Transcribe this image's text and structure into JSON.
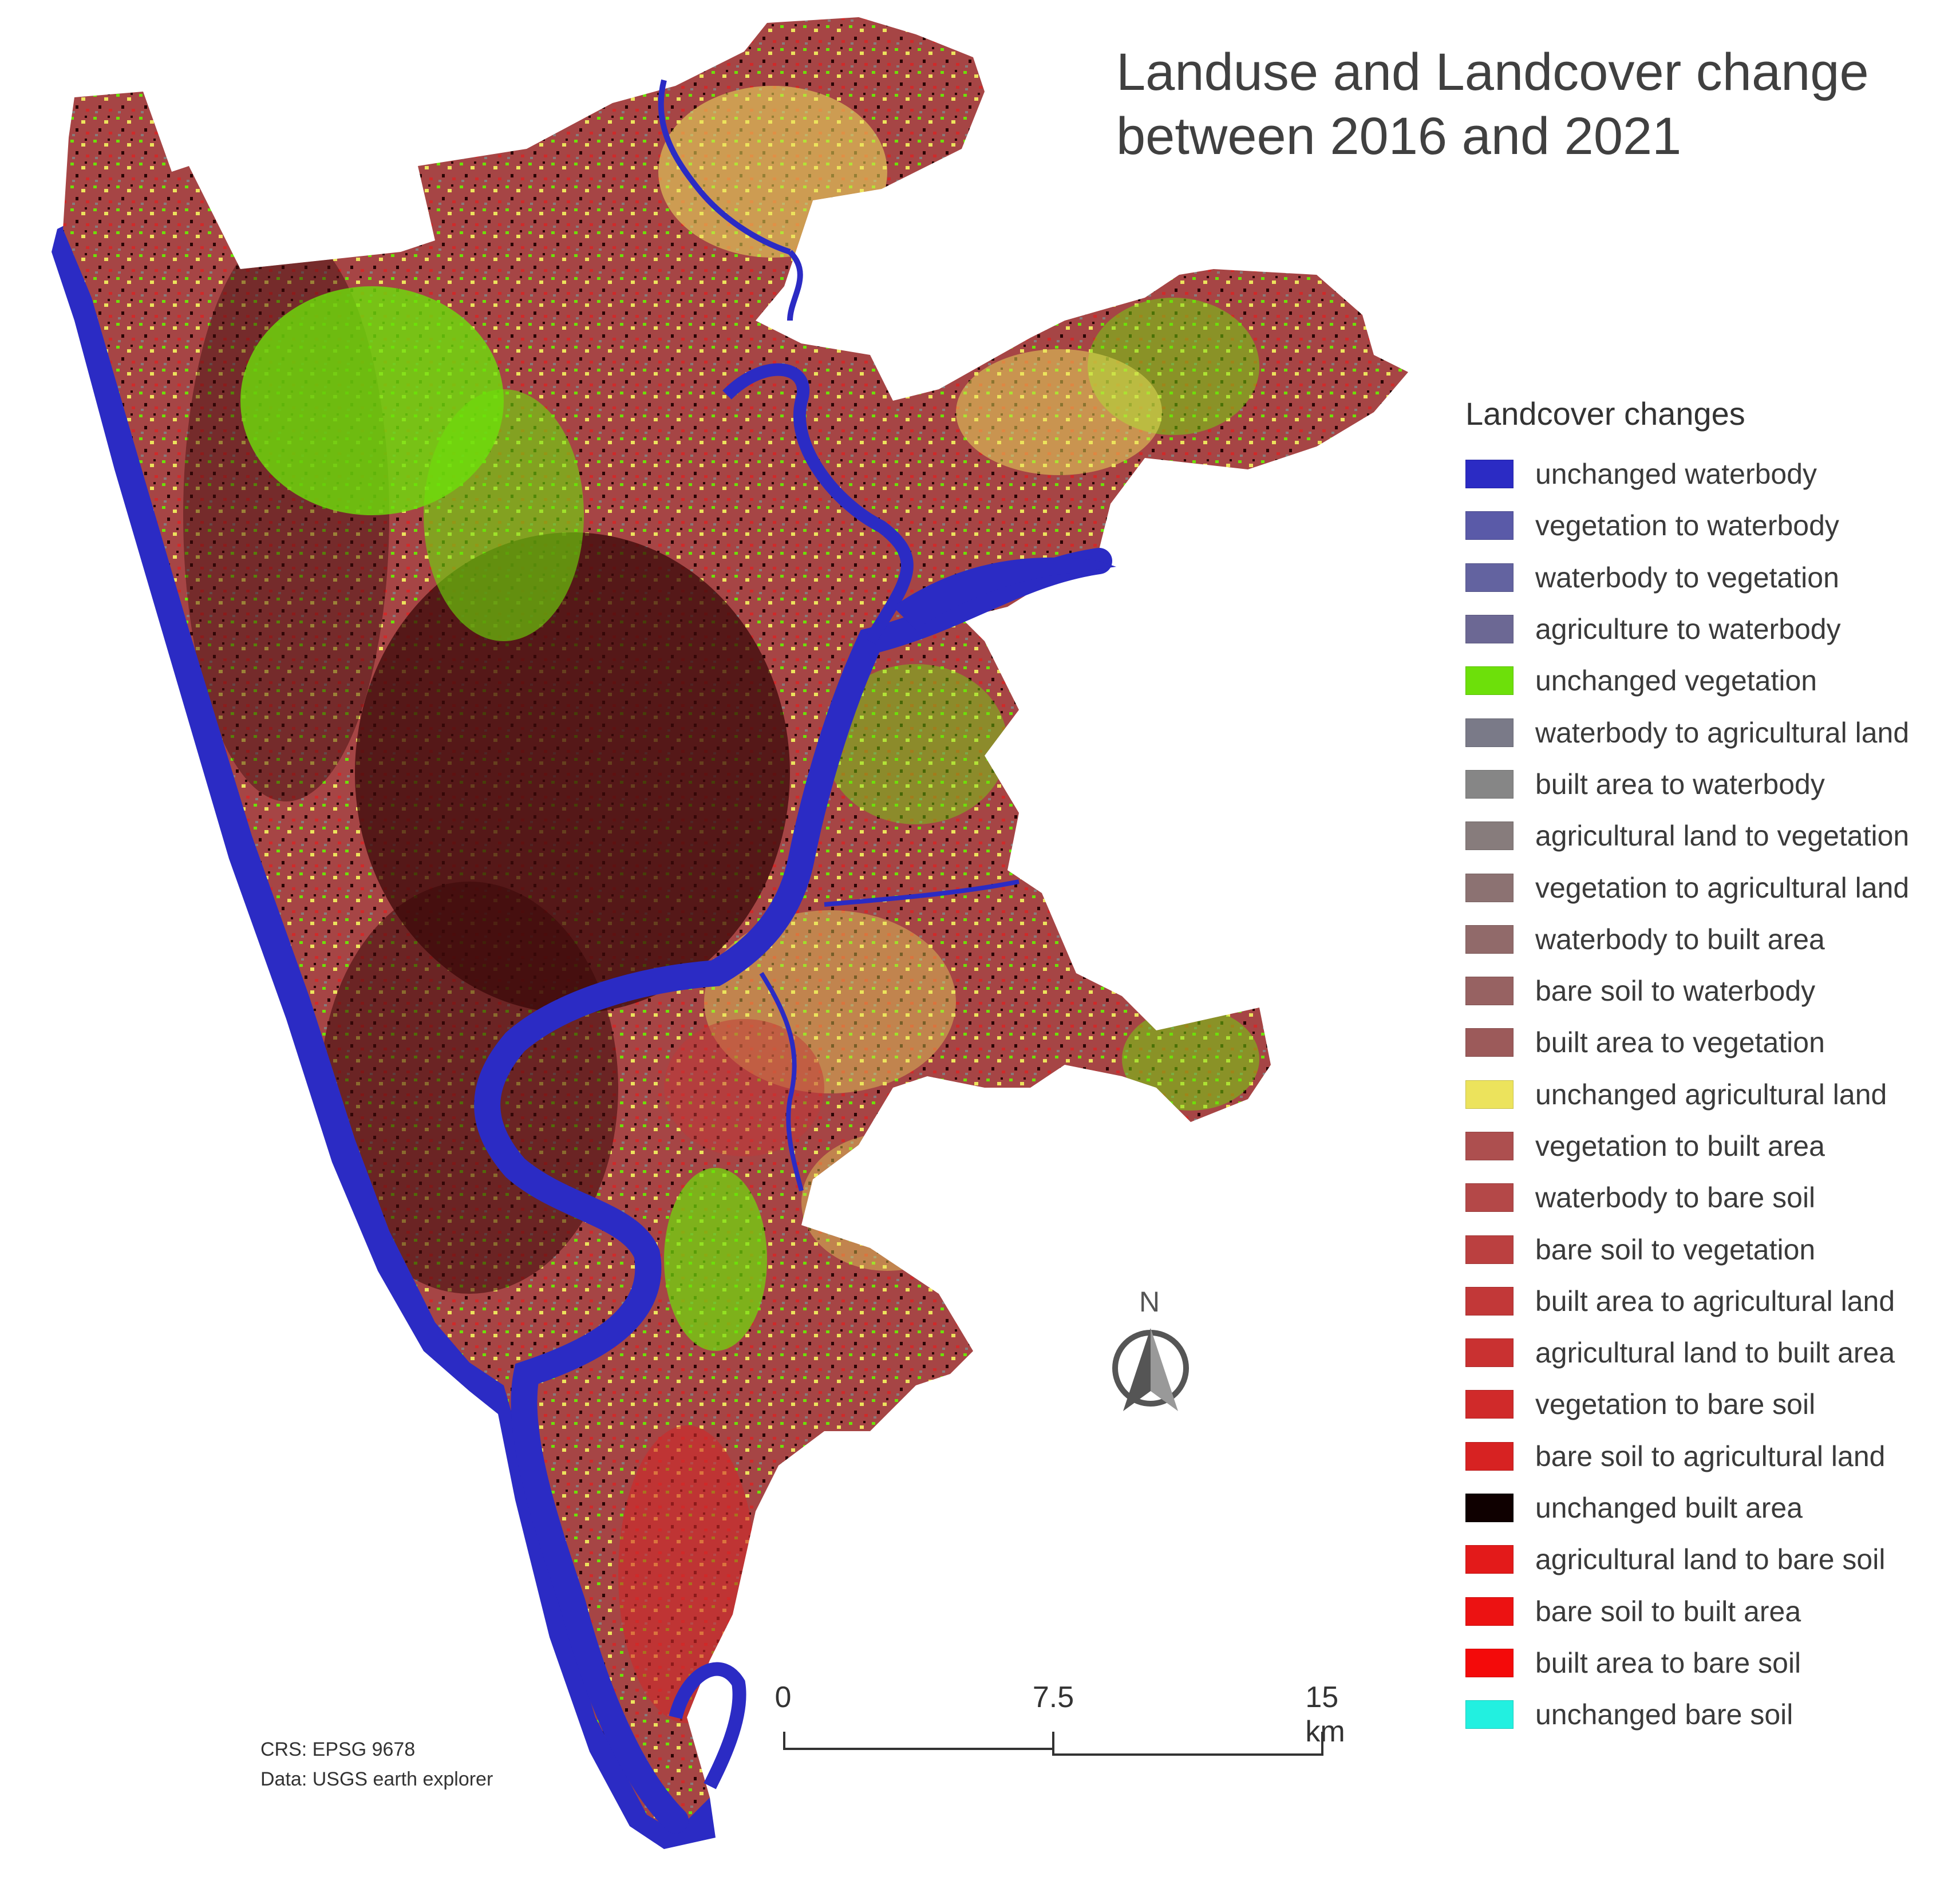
{
  "title": {
    "line1": "Landuse and Landcover change",
    "line2": "between 2016 and 2021"
  },
  "legend": {
    "title": "Landcover changes",
    "items": [
      {
        "label": "unchanged waterbody",
        "color": "#2b2bc4"
      },
      {
        "label": "vegetation to waterbody",
        "color": "#5a5aa8"
      },
      {
        "label": "waterbody to vegetation",
        "color": "#6363a0"
      },
      {
        "label": "agriculture to waterbody",
        "color": "#6c6894"
      },
      {
        "label": "unchanged vegetation",
        "color": "#6de00a"
      },
      {
        "label": "waterbody to agricultural land",
        "color": "#7a7a88"
      },
      {
        "label": "built area to waterbody",
        "color": "#868686"
      },
      {
        "label": "agricultural land to vegetation",
        "color": "#877c7c"
      },
      {
        "label": "vegetation to agricultural land",
        "color": "#8c7272"
      },
      {
        "label": "waterbody to built area",
        "color": "#916a6a"
      },
      {
        "label": "bare soil to waterbody",
        "color": "#976262"
      },
      {
        "label": "built area to vegetation",
        "color": "#9c5a5a"
      },
      {
        "label": "unchanged agricultural land",
        "color": "#ece35c"
      },
      {
        "label": "vegetation to built area",
        "color": "#ad4f4f"
      },
      {
        "label": "waterbody to bare soil",
        "color": "#b44848"
      },
      {
        "label": "bare soil to vegetation",
        "color": "#bb4040"
      },
      {
        "label": "built area to agricultural land",
        "color": "#c23838"
      },
      {
        "label": "agricultural land to built area",
        "color": "#c93131"
      },
      {
        "label": "vegetation to bare soil",
        "color": "#d02a2a"
      },
      {
        "label": "bare soil to agricultural land",
        "color": "#d72222"
      },
      {
        "label": "unchanged built area",
        "color": "#0f0000"
      },
      {
        "label": "agricultural land to bare soil",
        "color": "#e31a1a"
      },
      {
        "label": "bare soil to built area",
        "color": "#ec1212"
      },
      {
        "label": "built area to bare soil",
        "color": "#f40a0a"
      },
      {
        "label": "unchanged bare soil",
        "color": "#22f0e0"
      }
    ]
  },
  "scalebar": {
    "labels": [
      "0",
      "7.5",
      "15 km"
    ]
  },
  "north_arrow": {
    "letter": "N",
    "icon": "north-arrow-icon"
  },
  "credits": {
    "crs": "CRS: EPSG 9678",
    "data": "Data: USGS earth explorer"
  },
  "map": {
    "land_color": "#a64545",
    "sea_color": "#2b2bc4",
    "vegetation_color": "#6de00a",
    "agri_color": "#ece35c",
    "built_color": "#3a0a0a"
  }
}
